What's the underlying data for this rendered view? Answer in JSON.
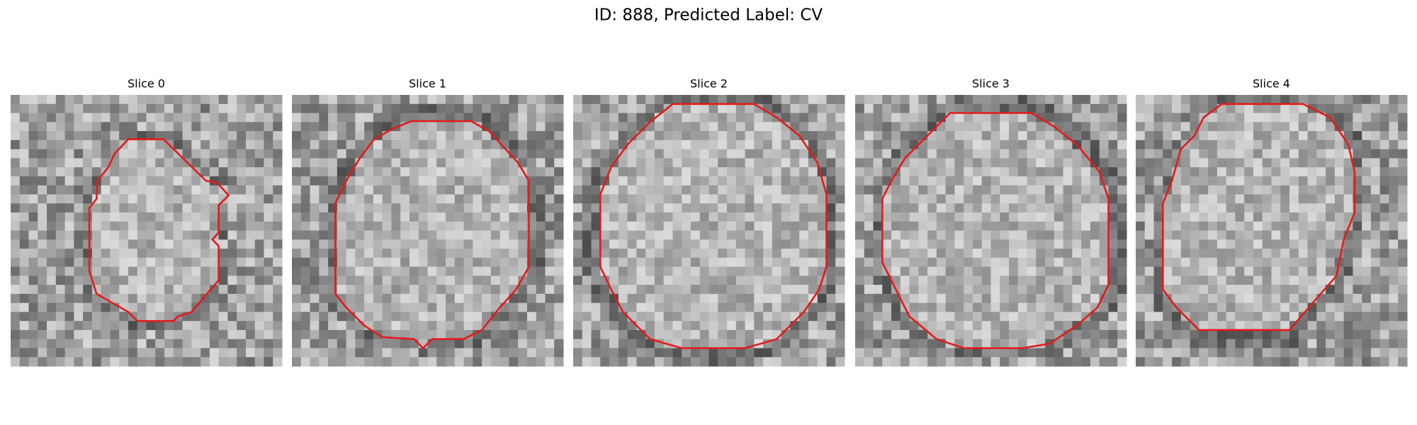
{
  "header": {
    "title": "ID: 888, Predicted Label: CV"
  },
  "panels": [
    {
      "title": "Slice 0"
    },
    {
      "title": "Slice 1"
    },
    {
      "title": "Slice 2"
    },
    {
      "title": "Slice 3"
    },
    {
      "title": "Slice 4"
    }
  ]
}
